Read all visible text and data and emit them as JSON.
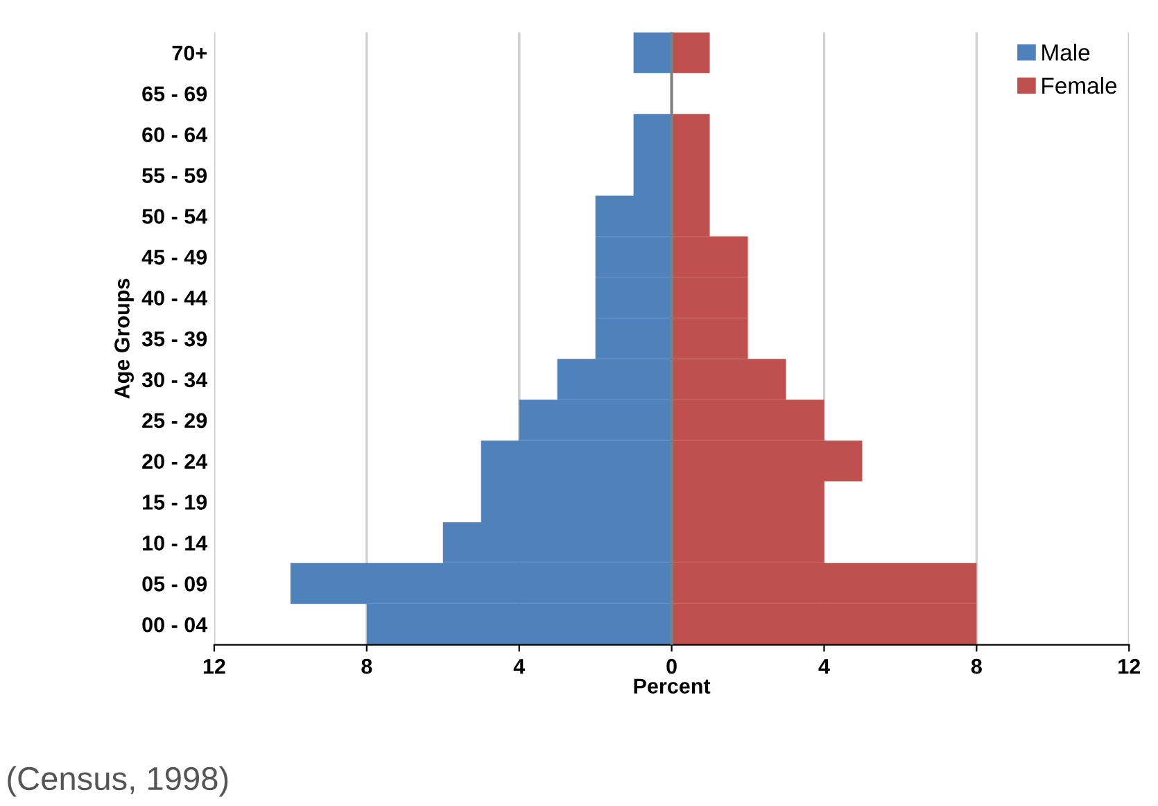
{
  "chart_data": {
    "type": "bar",
    "orientation": "horizontal",
    "ylabel": "Age Groups",
    "xlabel": "Percent",
    "categories": [
      "70+",
      "65 - 69",
      "60 - 64",
      "55 - 59",
      "50 - 54",
      "45 - 49",
      "40 - 44",
      "35 - 39",
      "30 - 34",
      "25 - 29",
      "20 - 24",
      "15 - 19",
      "10 - 14",
      "05 - 09",
      "00 - 04"
    ],
    "series": [
      {
        "name": "Male",
        "color": "#4f81bd",
        "values": [
          -1,
          0,
          -1,
          -1,
          -2,
          -2,
          -2,
          -2,
          -3,
          -4,
          -5,
          -5,
          -6,
          -10,
          -8
        ]
      },
      {
        "name": "Female",
        "color": "#c0504d",
        "values": [
          1,
          0,
          1,
          1,
          1,
          2,
          2,
          2,
          3,
          4,
          5,
          4,
          4,
          8,
          8
        ]
      }
    ],
    "xlim": [
      -12,
      12
    ],
    "xticks": [
      {
        "value": -12,
        "label": "12"
      },
      {
        "value": -8,
        "label": "8"
      },
      {
        "value": -4,
        "label": "4"
      },
      0,
      4,
      8,
      12
    ],
    "stacked": true,
    "grid": "x",
    "legend": "top right",
    "annotations": [
      "(Census, 1998)"
    ]
  }
}
